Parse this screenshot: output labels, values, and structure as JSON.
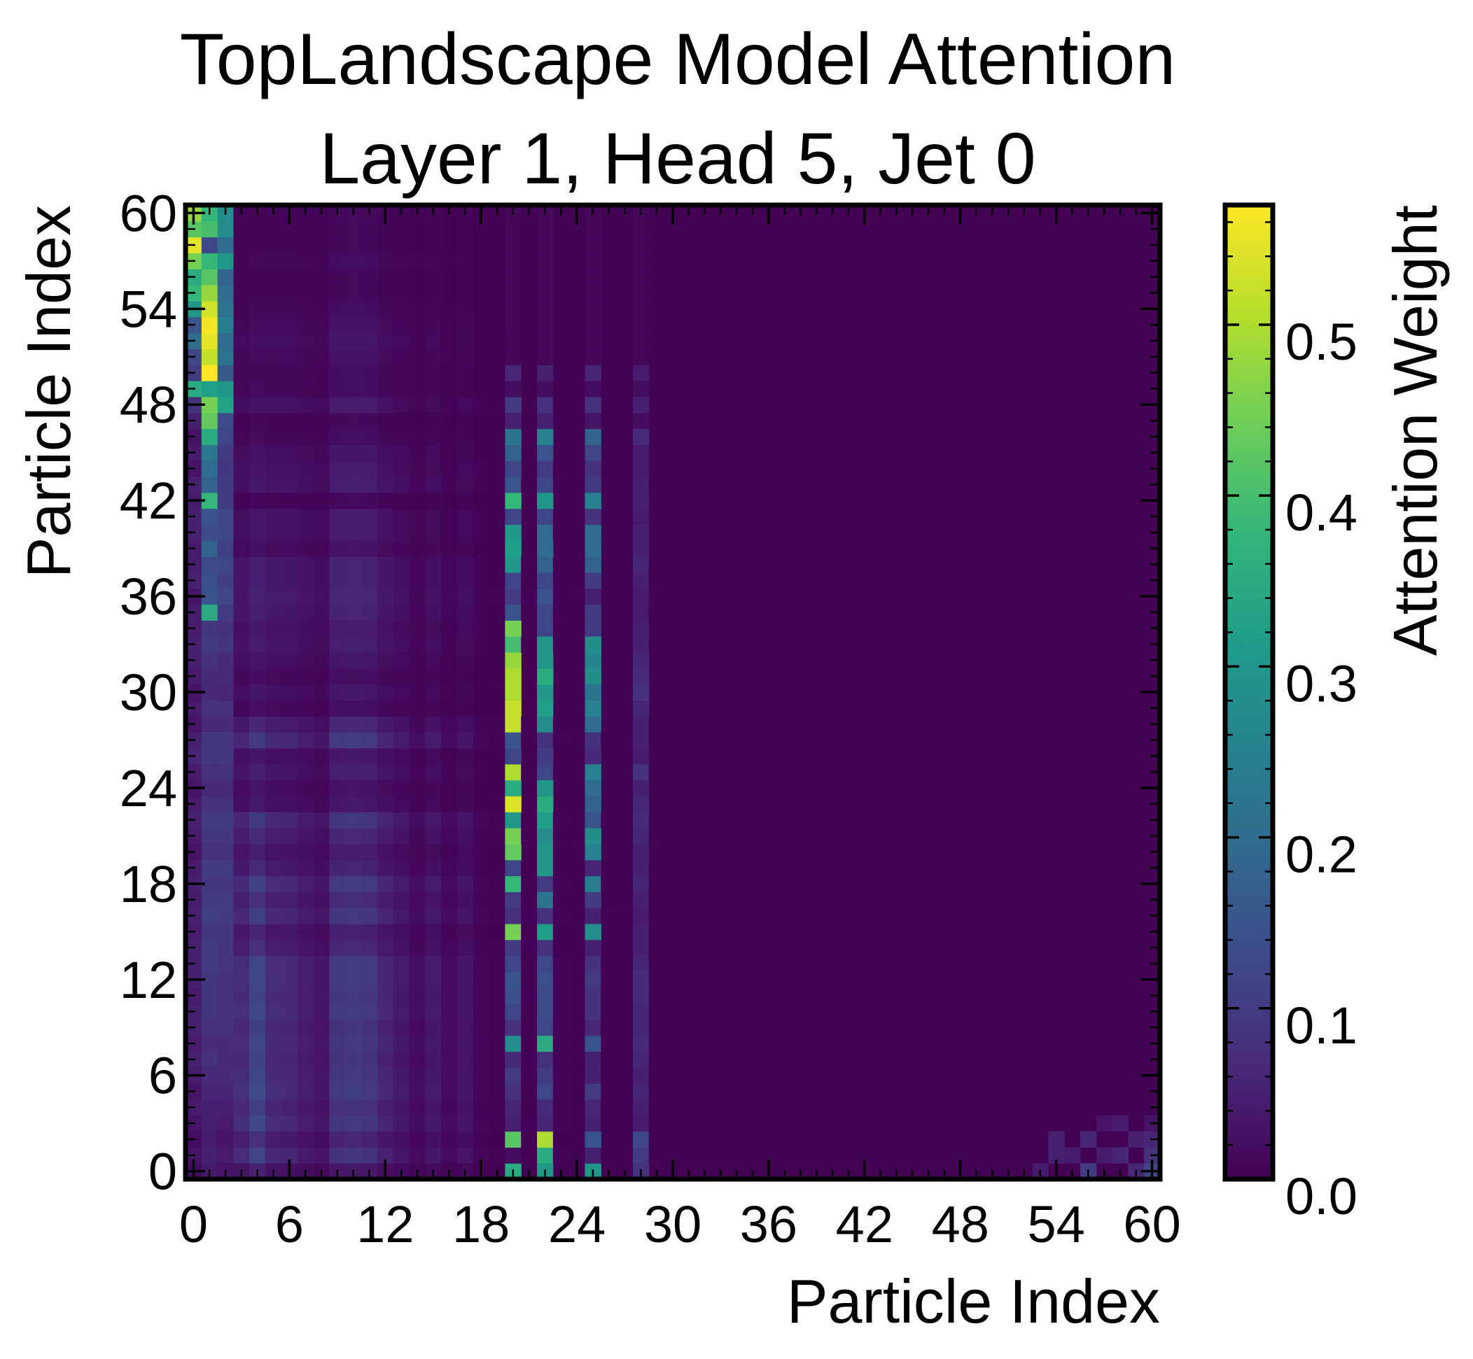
{
  "chart_data": {
    "type": "heatmap",
    "title": "TopLandscape Model Attention",
    "subtitle": "Layer 1, Head 5, Jet 0",
    "xlabel": "Particle Index",
    "ylabel": "Particle Index",
    "colorbar_label": "Attention Weight",
    "colormap": "viridis",
    "colormap_stops": [
      "#440154",
      "#482878",
      "#3e4989",
      "#31688e",
      "#26828e",
      "#1f9e89",
      "#35b779",
      "#6ece58",
      "#b5de2b",
      "#fde725"
    ],
    "n_particles": 61,
    "xlim": [
      -0.5,
      60.5
    ],
    "ylim": [
      -0.5,
      60.5
    ],
    "x_ticks": [
      0,
      6,
      12,
      18,
      24,
      30,
      36,
      42,
      48,
      54,
      60
    ],
    "y_ticks": [
      0,
      6,
      12,
      18,
      24,
      30,
      36,
      42,
      48,
      54,
      60
    ],
    "colorbar_range": [
      0.0,
      0.57
    ],
    "colorbar_ticks": [
      "0.0",
      "0.1",
      "0.2",
      "0.3",
      "0.4",
      "0.5"
    ],
    "background_value": 0.002,
    "column_profiles": [
      {
        "x": 0,
        "values": [
          0.02,
          0.03,
          0.02,
          0.03,
          0.04,
          0.03,
          0.04,
          0.05,
          0.04,
          0.05,
          0.05,
          0.04,
          0.05,
          0.05,
          0.05,
          0.04,
          0.05,
          0.04,
          0.05,
          0.04,
          0.03,
          0.04,
          0.05,
          0.04,
          0.03,
          0.04,
          0.06,
          0.05,
          0.03,
          0.04,
          0.03,
          0.04,
          0.05,
          0.05,
          0.04,
          0.04,
          0.03,
          0.05,
          0.04,
          0.04,
          0.05,
          0.05,
          0.04,
          0.05,
          0.03,
          0.04,
          0.03,
          0.05,
          0.08,
          0.35,
          0.1,
          0.12,
          0.2,
          0.15,
          0.3,
          0.38,
          0.35,
          0.45,
          0.55,
          0.42,
          0.48
        ]
      },
      {
        "x": 1,
        "values": [
          0.04,
          0.05,
          0.04,
          0.05,
          0.05,
          0.06,
          0.07,
          0.08,
          0.07,
          0.08,
          0.09,
          0.09,
          0.09,
          0.1,
          0.1,
          0.09,
          0.11,
          0.1,
          0.09,
          0.1,
          0.08,
          0.09,
          0.1,
          0.08,
          0.07,
          0.08,
          0.09,
          0.09,
          0.07,
          0.08,
          0.07,
          0.07,
          0.08,
          0.1,
          0.09,
          0.35,
          0.15,
          0.14,
          0.13,
          0.18,
          0.13,
          0.15,
          0.38,
          0.18,
          0.2,
          0.23,
          0.35,
          0.43,
          0.45,
          0.32,
          0.57,
          0.52,
          0.55,
          0.56,
          0.53,
          0.48,
          0.42,
          0.38,
          0.12,
          0.4,
          0.38
        ]
      },
      {
        "x": 2,
        "values": [
          0.03,
          0.04,
          0.03,
          0.04,
          0.05,
          0.06,
          0.07,
          0.07,
          0.07,
          0.08,
          0.08,
          0.08,
          0.08,
          0.09,
          0.09,
          0.09,
          0.1,
          0.1,
          0.09,
          0.1,
          0.08,
          0.09,
          0.1,
          0.08,
          0.07,
          0.08,
          0.09,
          0.09,
          0.07,
          0.08,
          0.06,
          0.07,
          0.07,
          0.09,
          0.08,
          0.1,
          0.12,
          0.11,
          0.12,
          0.11,
          0.12,
          0.12,
          0.1,
          0.1,
          0.09,
          0.1,
          0.12,
          0.13,
          0.33,
          0.3,
          0.16,
          0.22,
          0.2,
          0.24,
          0.22,
          0.2,
          0.18,
          0.3,
          0.2,
          0.28,
          0.28
        ]
      }
    ],
    "columns": [
      {
        "x": 3,
        "scale": 0.6,
        "decay": 0.35
      },
      {
        "x": 4,
        "scale": 1.0,
        "decay": 0.25
      },
      {
        "x": 5,
        "scale": 0.55,
        "decay": 0.7
      },
      {
        "x": 6,
        "scale": 0.5,
        "decay": 0.8
      },
      {
        "x": 7,
        "scale": 0.35,
        "decay": 0.9
      },
      {
        "x": 8,
        "scale": 0.25,
        "decay": 1.0
      },
      {
        "x": 9,
        "scale": 0.7,
        "decay": 0.95
      },
      {
        "x": 10,
        "scale": 0.75,
        "decay": 0.95
      },
      {
        "x": 11,
        "scale": 0.7,
        "decay": 0.95
      },
      {
        "x": 12,
        "scale": 0.45,
        "decay": 0.95
      },
      {
        "x": 13,
        "scale": 0.3,
        "decay": 1.0
      },
      {
        "x": 14,
        "scale": 0.15,
        "decay": 1.0
      },
      {
        "x": 15,
        "scale": 0.3,
        "decay": 1.0
      },
      {
        "x": 16,
        "scale": 0.12,
        "decay": 1.0
      },
      {
        "x": 17,
        "scale": 0.25,
        "decay": 1.0
      },
      {
        "x": 18,
        "scale": 0.08,
        "decay": 1.0
      },
      {
        "x": 19,
        "scale": 0.05,
        "decay": 1.0
      },
      {
        "x": 21,
        "scale": 0.03,
        "decay": 1.0
      },
      {
        "x": 23,
        "scale": 0.04,
        "decay": 1.0
      },
      {
        "x": 24,
        "scale": 0.03,
        "decay": 1.0
      },
      {
        "x": 26,
        "scale": 0.02,
        "decay": 1.0
      },
      {
        "x": 27,
        "scale": 0.02,
        "decay": 1.0
      },
      {
        "x": 29,
        "scale": 0.03,
        "decay": 1.0
      }
    ],
    "row_profile": [
      0.05,
      0.12,
      0.08,
      0.13,
      0.11,
      0.14,
      0.13,
      0.12,
      0.13,
      0.12,
      0.14,
      0.13,
      0.14,
      0.14,
      0.09,
      0.07,
      0.13,
      0.1,
      0.14,
      0.08,
      0.06,
      0.09,
      0.13,
      0.05,
      0.04,
      0.07,
      0.05,
      0.14,
      0.09,
      0.03,
      0.05,
      0.03,
      0.05,
      0.07,
      0.06,
      0.08,
      0.09,
      0.08,
      0.08,
      0.04,
      0.06,
      0.06,
      0.02,
      0.07,
      0.06,
      0.05,
      0.03,
      0.02,
      0.06,
      0.03,
      0.03,
      0.04,
      0.05,
      0.04,
      0.03,
      0.02,
      0.02,
      0.03,
      0.02,
      0.02,
      0.02
    ],
    "stripes": [
      {
        "x": 20,
        "values": [
          0.35,
          0.02,
          0.42,
          0.05,
          0.06,
          0.08,
          0.1,
          0.07,
          0.28,
          0.08,
          0.12,
          0.14,
          0.15,
          0.12,
          0.1,
          0.45,
          0.08,
          0.1,
          0.38,
          0.12,
          0.43,
          0.45,
          0.3,
          0.54,
          0.35,
          0.5,
          0.12,
          0.15,
          0.52,
          0.52,
          0.5,
          0.5,
          0.48,
          0.4,
          0.45,
          0.15,
          0.1,
          0.12,
          0.3,
          0.32,
          0.3,
          0.12,
          0.38,
          0.15,
          0.12,
          0.18,
          0.22,
          0.05,
          0.1,
          0.02,
          0.06,
          0.01,
          0.01,
          0.01,
          0.01,
          0.01,
          0.01,
          0.01,
          0.01,
          0.01,
          0.01
        ]
      },
      {
        "x": 22,
        "values": [
          0.3,
          0.35,
          0.5,
          0.06,
          0.07,
          0.12,
          0.1,
          0.08,
          0.35,
          0.12,
          0.13,
          0.13,
          0.14,
          0.12,
          0.08,
          0.32,
          0.08,
          0.22,
          0.1,
          0.3,
          0.3,
          0.28,
          0.32,
          0.35,
          0.3,
          0.12,
          0.1,
          0.08,
          0.28,
          0.32,
          0.3,
          0.35,
          0.3,
          0.3,
          0.12,
          0.12,
          0.15,
          0.12,
          0.18,
          0.2,
          0.2,
          0.12,
          0.3,
          0.12,
          0.1,
          0.15,
          0.25,
          0.05,
          0.08,
          0.02,
          0.05,
          0.01,
          0.01,
          0.01,
          0.01,
          0.01,
          0.01,
          0.01,
          0.01,
          0.01,
          0.01
        ]
      },
      {
        "x": 25,
        "values": [
          0.3,
          0.05,
          0.15,
          0.05,
          0.06,
          0.1,
          0.05,
          0.05,
          0.15,
          0.06,
          0.08,
          0.08,
          0.1,
          0.08,
          0.05,
          0.28,
          0.05,
          0.1,
          0.24,
          0.06,
          0.25,
          0.28,
          0.15,
          0.18,
          0.2,
          0.25,
          0.07,
          0.08,
          0.2,
          0.25,
          0.22,
          0.28,
          0.26,
          0.28,
          0.1,
          0.1,
          0.05,
          0.1,
          0.18,
          0.2,
          0.2,
          0.08,
          0.25,
          0.1,
          0.08,
          0.12,
          0.18,
          0.03,
          0.08,
          0.02,
          0.06,
          0.01,
          0.01,
          0.01,
          0.01,
          0.01,
          0.01,
          0.01,
          0.01,
          0.01,
          0.01
        ]
      },
      {
        "x": 28,
        "values": [
          0.08,
          0.1,
          0.12,
          0.04,
          0.05,
          0.06,
          0.05,
          0.06,
          0.07,
          0.06,
          0.06,
          0.07,
          0.07,
          0.06,
          0.05,
          0.05,
          0.04,
          0.05,
          0.06,
          0.05,
          0.05,
          0.06,
          0.07,
          0.06,
          0.05,
          0.08,
          0.04,
          0.05,
          0.05,
          0.06,
          0.08,
          0.07,
          0.06,
          0.05,
          0.05,
          0.04,
          0.04,
          0.05,
          0.06,
          0.05,
          0.05,
          0.04,
          0.05,
          0.05,
          0.04,
          0.04,
          0.07,
          0.02,
          0.05,
          0.02,
          0.04,
          0.01,
          0.01,
          0.01,
          0.01,
          0.01,
          0.01,
          0.01,
          0.01,
          0.01,
          0.01
        ]
      }
    ],
    "corner_cells": [
      {
        "x": 60,
        "y": 0,
        "value": 0.12
      },
      {
        "x": 59,
        "y": 0,
        "value": 0.06
      },
      {
        "x": 60,
        "y": 1,
        "value": 0.08
      },
      {
        "x": 56,
        "y": 0,
        "value": 0.1
      },
      {
        "x": 56,
        "y": 2,
        "value": 0.06
      },
      {
        "x": 58,
        "y": 1,
        "value": 0.06
      },
      {
        "x": 59,
        "y": 2,
        "value": 0.05
      },
      {
        "x": 60,
        "y": 2,
        "value": 0.06
      },
      {
        "x": 54,
        "y": 1,
        "value": 0.05
      },
      {
        "x": 54,
        "y": 2,
        "value": 0.05
      },
      {
        "x": 57,
        "y": 1,
        "value": 0.04
      },
      {
        "x": 55,
        "y": 1,
        "value": 0.04
      },
      {
        "x": 58,
        "y": 3,
        "value": 0.04
      },
      {
        "x": 57,
        "y": 3,
        "value": 0.03
      },
      {
        "x": 53,
        "y": 0,
        "value": 0.04
      },
      {
        "x": 60,
        "y": 3,
        "value": 0.03
      }
    ]
  }
}
